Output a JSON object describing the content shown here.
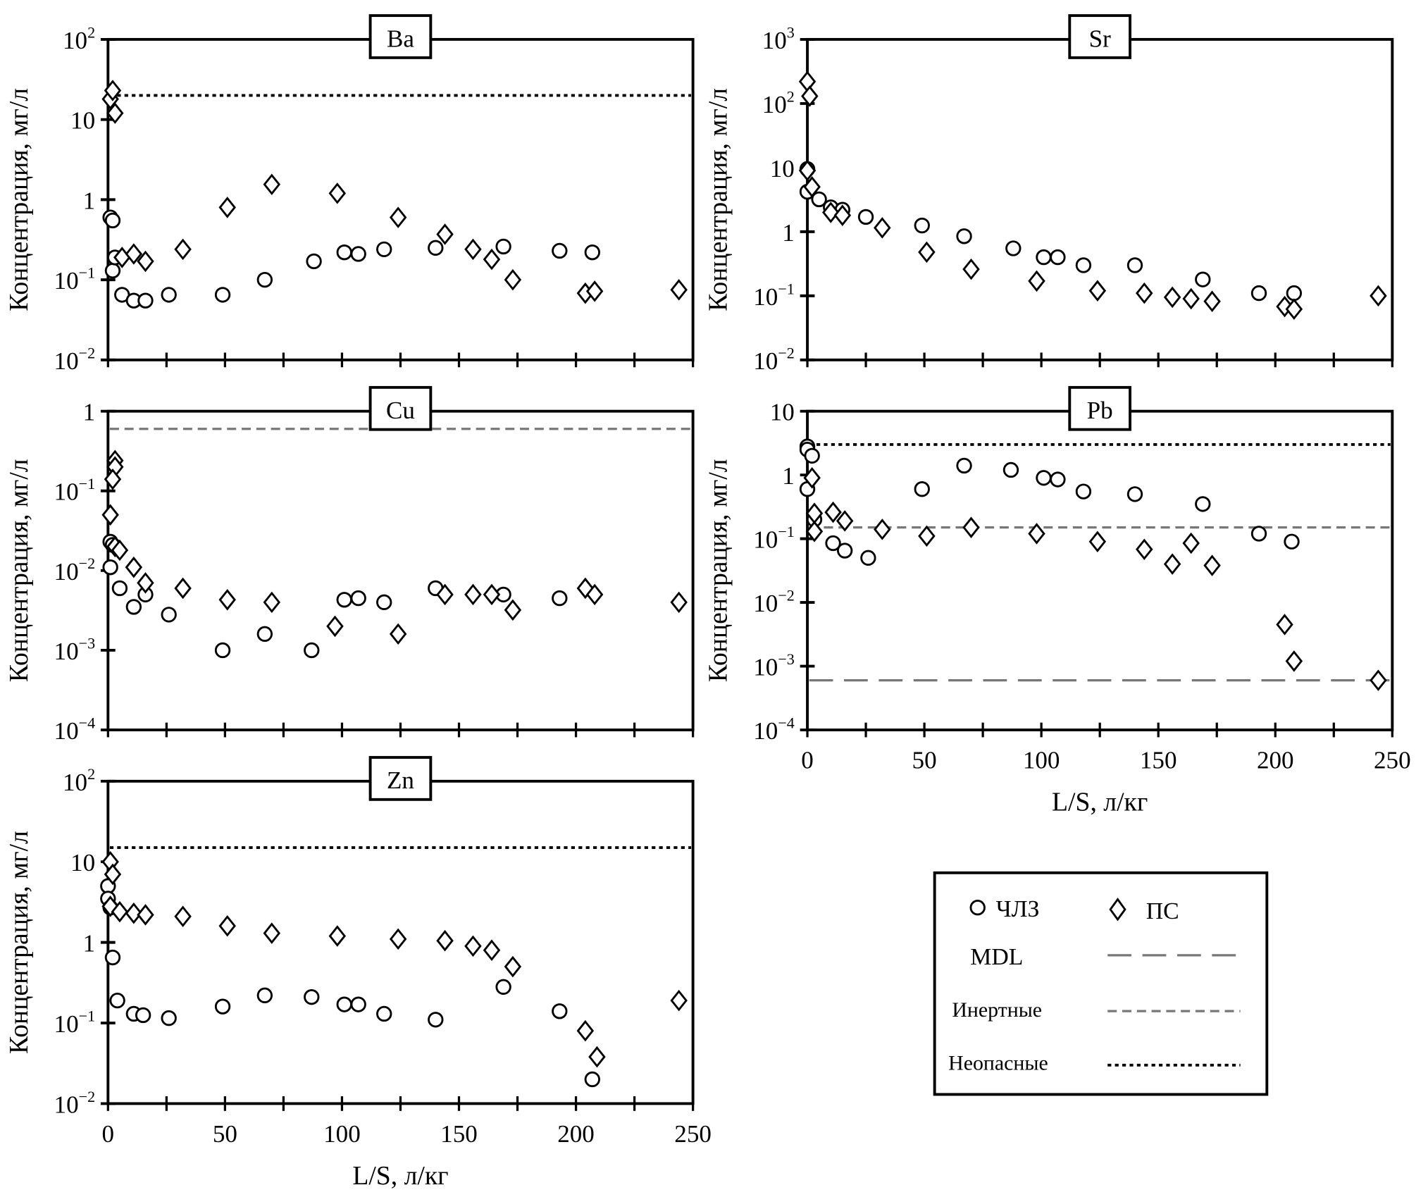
{
  "legend": {
    "circle_label": "ЧЛЗ",
    "diamond_label": "ПС",
    "mdl_label": "MDL",
    "inert_label": "Инертные",
    "nonhaz_label": "Неопасные"
  },
  "colors": {
    "axis": "#000000",
    "mdl": "#777777",
    "inert": "#777777",
    "nonhaz": "#000000"
  },
  "chart_data": [
    {
      "type": "scatter",
      "title": "Ba",
      "ylabel": "Концентрация, мг/л",
      "xlabel": "",
      "xlim": [
        0,
        250
      ],
      "ylim_log10": [
        -2,
        2
      ],
      "x_tick_labels_shown": false,
      "grid": false,
      "ref_lines": {
        "nonhaz": 20
      },
      "series": [
        {
          "name": "ЧЛЗ",
          "marker": "circle",
          "points": [
            [
              1,
              0.6
            ],
            [
              2,
              0.55
            ],
            [
              2,
              0.13
            ],
            [
              3,
              0.19
            ],
            [
              6,
              0.065
            ],
            [
              11,
              0.055
            ],
            [
              16,
              0.055
            ],
            [
              26,
              0.065
            ],
            [
              49,
              0.065
            ],
            [
              67,
              0.1
            ],
            [
              88,
              0.17
            ],
            [
              101,
              0.22
            ],
            [
              107,
              0.21
            ],
            [
              118,
              0.24
            ],
            [
              140,
              0.25
            ],
            [
              169,
              0.26
            ],
            [
              193,
              0.23
            ],
            [
              207,
              0.22
            ]
          ]
        },
        {
          "name": "ПС",
          "marker": "diamond",
          "points": [
            [
              1,
              18
            ],
            [
              2,
              23
            ],
            [
              3,
              12
            ],
            [
              6,
              0.19
            ],
            [
              11,
              0.21
            ],
            [
              16,
              0.17
            ],
            [
              32,
              0.24
            ],
            [
              51,
              0.8
            ],
            [
              70,
              1.55
            ],
            [
              98,
              1.2
            ],
            [
              124,
              0.6
            ],
            [
              144,
              0.37
            ],
            [
              156,
              0.24
            ],
            [
              164,
              0.18
            ],
            [
              173,
              0.1
            ],
            [
              204,
              0.068
            ],
            [
              208,
              0.072
            ],
            [
              244,
              0.075
            ]
          ]
        }
      ]
    },
    {
      "type": "scatter",
      "title": "Sr",
      "ylabel": "Концентрация, мг/л",
      "xlabel": "",
      "xlim": [
        0,
        250
      ],
      "ylim_log10": [
        -2,
        3
      ],
      "x_tick_labels_shown": false,
      "grid": false,
      "ref_lines": {},
      "series": [
        {
          "name": "ЧЛЗ",
          "marker": "circle",
          "points": [
            [
              0,
              9.5
            ],
            [
              0,
              4.2
            ],
            [
              5,
              3.2
            ],
            [
              10,
              2.4
            ],
            [
              15,
              2.2
            ],
            [
              25,
              1.7
            ],
            [
              49,
              1.25
            ],
            [
              67,
              0.85
            ],
            [
              88,
              0.55
            ],
            [
              101,
              0.4
            ],
            [
              107,
              0.4
            ],
            [
              118,
              0.3
            ],
            [
              140,
              0.3
            ],
            [
              169,
              0.18
            ],
            [
              193,
              0.11
            ],
            [
              208,
              0.11
            ]
          ]
        },
        {
          "name": "ПС",
          "marker": "diamond",
          "points": [
            [
              0,
              220
            ],
            [
              1,
              130
            ],
            [
              0,
              9
            ],
            [
              2,
              5
            ],
            [
              10,
              2.0
            ],
            [
              15,
              1.8
            ],
            [
              32,
              1.15
            ],
            [
              51,
              0.48
            ],
            [
              70,
              0.26
            ],
            [
              98,
              0.17
            ],
            [
              124,
              0.12
            ],
            [
              144,
              0.11
            ],
            [
              156,
              0.095
            ],
            [
              164,
              0.09
            ],
            [
              173,
              0.082
            ],
            [
              204,
              0.068
            ],
            [
              208,
              0.062
            ],
            [
              244,
              0.1
            ]
          ]
        }
      ]
    },
    {
      "type": "scatter",
      "title": "Cu",
      "ylabel": "Концентрация, мг/л",
      "xlabel": "",
      "xlim": [
        0,
        250
      ],
      "ylim_log10": [
        -4,
        0
      ],
      "x_tick_labels_shown": false,
      "grid": false,
      "ref_lines": {
        "inert": 0.6
      },
      "series": [
        {
          "name": "ЧЛЗ",
          "marker": "circle",
          "points": [
            [
              1,
              0.023
            ],
            [
              2,
              0.021
            ],
            [
              1,
              0.011
            ],
            [
              5,
              0.006
            ],
            [
              11,
              0.0035
            ],
            [
              16,
              0.005
            ],
            [
              26,
              0.0028
            ],
            [
              49,
              0.001
            ],
            [
              67,
              0.0016
            ],
            [
              87,
              0.001
            ],
            [
              101,
              0.0043
            ],
            [
              107,
              0.0045
            ],
            [
              118,
              0.004
            ],
            [
              140,
              0.006
            ],
            [
              169,
              0.005
            ],
            [
              193,
              0.0045
            ]
          ]
        },
        {
          "name": "ПС",
          "marker": "diamond",
          "points": [
            [
              3,
              0.24
            ],
            [
              3,
              0.2
            ],
            [
              2,
              0.14
            ],
            [
              1,
              0.05
            ],
            [
              3,
              0.02
            ],
            [
              5,
              0.018
            ],
            [
              11,
              0.011
            ],
            [
              16,
              0.007
            ],
            [
              32,
              0.006
            ],
            [
              51,
              0.0043
            ],
            [
              70,
              0.004
            ],
            [
              97,
              0.002
            ],
            [
              124,
              0.0016
            ],
            [
              144,
              0.005
            ],
            [
              156,
              0.005
            ],
            [
              164,
              0.005
            ],
            [
              173,
              0.0032
            ],
            [
              204,
              0.006
            ],
            [
              208,
              0.005
            ],
            [
              244,
              0.004
            ]
          ]
        }
      ]
    },
    {
      "type": "scatter",
      "title": "Pb",
      "ylabel": "Концентрация, мг/л",
      "xlabel": "L/S, л/кг",
      "xlim": [
        0,
        250
      ],
      "ylim_log10": [
        -4,
        1
      ],
      "x_tick_labels_shown": true,
      "grid": false,
      "ref_lines": {
        "nonhaz": 3,
        "inert": 0.15,
        "mdl": 0.0006
      },
      "series": [
        {
          "name": "ЧЛЗ",
          "marker": "circle",
          "points": [
            [
              0,
              2.8
            ],
            [
              0,
              2.5
            ],
            [
              2,
              2.0
            ],
            [
              0,
              0.6
            ],
            [
              3,
              0.2
            ],
            [
              11,
              0.085
            ],
            [
              16,
              0.065
            ],
            [
              26,
              0.05
            ],
            [
              49,
              0.6
            ],
            [
              67,
              1.4
            ],
            [
              87,
              1.2
            ],
            [
              101,
              0.9
            ],
            [
              107,
              0.85
            ],
            [
              118,
              0.55
            ],
            [
              140,
              0.5
            ],
            [
              169,
              0.35
            ],
            [
              193,
              0.12
            ],
            [
              207,
              0.09
            ]
          ]
        },
        {
          "name": "ПС",
          "marker": "diamond",
          "points": [
            [
              2,
              0.9
            ],
            [
              3,
              0.25
            ],
            [
              3,
              0.13
            ],
            [
              11,
              0.26
            ],
            [
              16,
              0.19
            ],
            [
              32,
              0.14
            ],
            [
              51,
              0.11
            ],
            [
              70,
              0.15
            ],
            [
              98,
              0.12
            ],
            [
              124,
              0.09
            ],
            [
              144,
              0.068
            ],
            [
              156,
              0.04
            ],
            [
              164,
              0.085
            ],
            [
              173,
              0.038
            ],
            [
              204,
              0.0045
            ],
            [
              208,
              0.0012
            ],
            [
              244,
              0.0006
            ]
          ]
        }
      ]
    },
    {
      "type": "scatter",
      "title": "Zn",
      "ylabel": "Концентрация, мг/л",
      "xlabel": "L/S, л/кг",
      "xlim": [
        0,
        250
      ],
      "ylim_log10": [
        -2,
        2
      ],
      "x_tick_labels_shown": true,
      "grid": false,
      "ref_lines": {
        "nonhaz": 15
      },
      "series": [
        {
          "name": "ЧЛЗ",
          "marker": "circle",
          "points": [
            [
              0,
              5
            ],
            [
              0,
              3.5
            ],
            [
              1,
              2.7
            ],
            [
              2,
              0.65
            ],
            [
              4,
              0.19
            ],
            [
              11,
              0.13
            ],
            [
              15,
              0.125
            ],
            [
              26,
              0.115
            ],
            [
              49,
              0.16
            ],
            [
              67,
              0.22
            ],
            [
              87,
              0.21
            ],
            [
              101,
              0.17
            ],
            [
              107,
              0.17
            ],
            [
              118,
              0.13
            ],
            [
              140,
              0.11
            ],
            [
              169,
              0.28
            ],
            [
              193,
              0.14
            ],
            [
              207,
              0.02
            ]
          ]
        },
        {
          "name": "ПС",
          "marker": "diamond",
          "points": [
            [
              1,
              10
            ],
            [
              2,
              7
            ],
            [
              1,
              2.8
            ],
            [
              5,
              2.4
            ],
            [
              11,
              2.3
            ],
            [
              16,
              2.2
            ],
            [
              32,
              2.1
            ],
            [
              51,
              1.6
            ],
            [
              70,
              1.3
            ],
            [
              98,
              1.2
            ],
            [
              124,
              1.1
            ],
            [
              144,
              1.05
            ],
            [
              156,
              0.9
            ],
            [
              164,
              0.8
            ],
            [
              173,
              0.5
            ],
            [
              204,
              0.08
            ],
            [
              209,
              0.038
            ],
            [
              244,
              0.19
            ]
          ]
        }
      ]
    }
  ]
}
